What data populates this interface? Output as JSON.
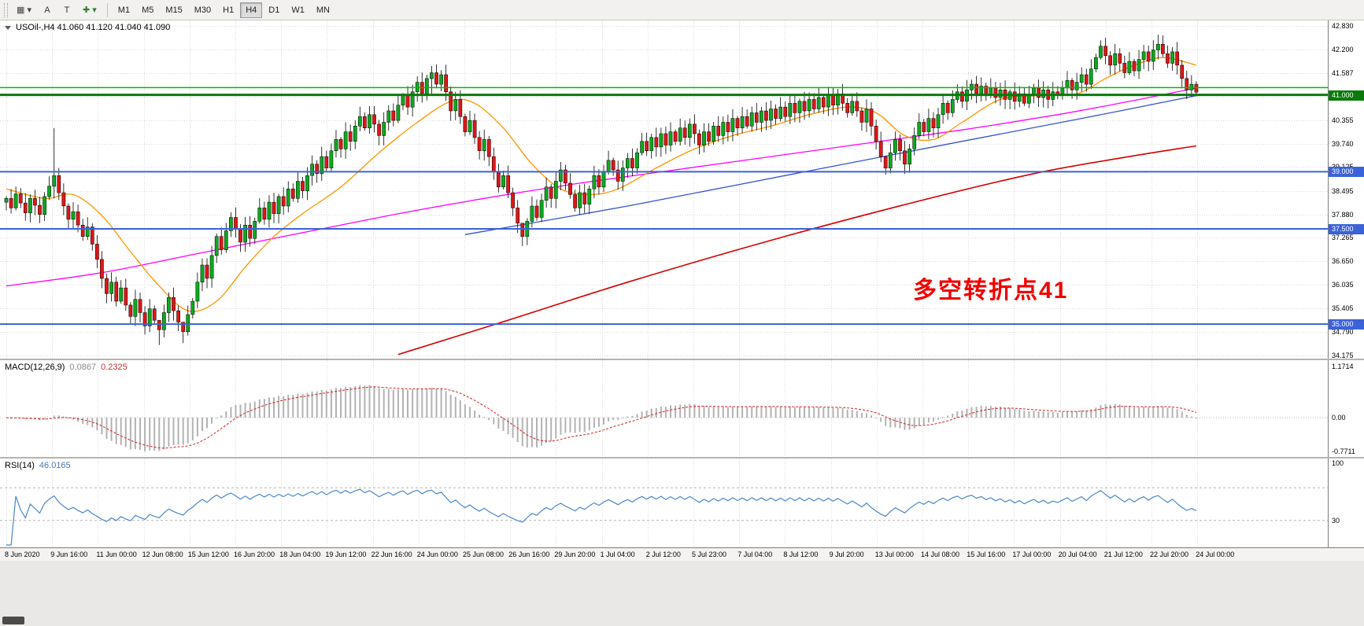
{
  "toolbar": {
    "tools": [
      {
        "name": "chart-type-dropdown",
        "glyph": "▦ ▾",
        "color": "#444444"
      },
      {
        "name": "text-tool",
        "glyph": "A",
        "color": "#333333"
      },
      {
        "name": "label-tool",
        "glyph": "T",
        "color": "#333333"
      },
      {
        "name": "crosshair-dropdown",
        "glyph": "✚ ▾",
        "color": "#2e7d32"
      }
    ],
    "timeframes": [
      "M1",
      "M5",
      "M15",
      "M30",
      "H1",
      "H4",
      "D1",
      "W1",
      "MN"
    ],
    "active_timeframe": "H4"
  },
  "chart": {
    "symbol_header": "USOil-,H4 41.060 41.120 41.040 41.090",
    "symbol": "USOil-",
    "timeframe": "H4",
    "open": "41.060",
    "high": "41.120",
    "low": "41.040",
    "close": "41.090",
    "annotation": "多空转折点41",
    "price_ticks": [
      "42.830",
      "42.200",
      "41.587",
      "40.970",
      "40.355",
      "39.740",
      "39.125",
      "38.495",
      "37.880",
      "37.265",
      "36.650",
      "36.035",
      "35.405",
      "34.790",
      "34.175"
    ],
    "price_line_labels": [
      {
        "text": "41.000",
        "price": 41.0,
        "bg": "#0a7a0a"
      },
      {
        "text": "39.000",
        "price": 39.0,
        "bg": "#3b62d9"
      },
      {
        "text": "37.500",
        "price": 37.5,
        "bg": "#3b62d9"
      },
      {
        "text": "35.000",
        "price": 35.0,
        "bg": "#3b62d9"
      }
    ]
  },
  "macd_panel": {
    "label": "MACD(12,26,9)",
    "value_main": "0.0867",
    "value_signal": "0.2325",
    "scale": [
      "1.1714",
      "0.00",
      "-0.7711"
    ]
  },
  "rsi_panel": {
    "label": "RSI(14)",
    "value": "46.0165",
    "scale": [
      "100",
      "30"
    ]
  },
  "time_axis": {
    "labels": [
      "8 Jun 2020",
      "9 Jun 16:00",
      "11 Jun 00:00",
      "12 Jun 08:00",
      "15 Jun 12:00",
      "16 Jun 20:00",
      "18 Jun 04:00",
      "19 Jun 12:00",
      "22 Jun 16:00",
      "24 Jun 00:00",
      "25 Jun 08:00",
      "26 Jun 16:00",
      "29 Jun 20:00",
      "1 Jul 04:00",
      "2 Jul 12:00",
      "5 Jul 23:00",
      "7 Jul 04:00",
      "8 Jul 12:00",
      "9 Jul 20:00",
      "13 Jul 00:00",
      "14 Jul 08:00",
      "15 Jul 16:00",
      "17 Jul 00:00",
      "20 Jul 04:00",
      "21 Jul 12:00",
      "22 Jul 20:00",
      "24 Jul 00:00"
    ]
  },
  "colors": {
    "bull": "#0caa1d",
    "bear": "#e01616",
    "candle_border": "#000000",
    "grid": "#dadada",
    "ma_fast_orange": "#ff9500",
    "ma_mid_magenta": "#ff00ff",
    "ma_slow_blue": "#3653cf",
    "ma_slowest_red": "#d40000",
    "hline_blue": "#3b62d9",
    "hline_green": "#00bb00",
    "hline_green_dark": "#0a7a0a",
    "macd_hist": "#b2b2b2",
    "macd_signal": "#d42020",
    "rsi_line": "#4a86c8",
    "annotation_red": "#f20000"
  },
  "chart_data": {
    "type": "candlestick",
    "symbol": "USOil-",
    "period": "H4",
    "price_range": {
      "max": 42.83,
      "min": 34.175
    },
    "candles": {
      "open_first": 38.2,
      "close": [
        38.3,
        38.05,
        38.42,
        38.18,
        37.92,
        38.3,
        38.12,
        37.88,
        38.35,
        38.62,
        38.9,
        38.45,
        38.1,
        37.75,
        37.95,
        37.6,
        37.3,
        37.55,
        37.1,
        36.7,
        36.2,
        35.8,
        36.1,
        35.6,
        35.95,
        35.5,
        35.2,
        35.65,
        35.3,
        34.95,
        35.4,
        35.1,
        34.85,
        35.3,
        35.7,
        35.35,
        35.05,
        34.8,
        35.25,
        35.6,
        36.1,
        36.55,
        36.2,
        36.8,
        37.3,
        36.95,
        37.45,
        37.8,
        37.5,
        37.15,
        37.6,
        37.25,
        37.7,
        38.05,
        37.75,
        38.2,
        37.9,
        38.35,
        38.1,
        38.55,
        38.3,
        38.75,
        38.5,
        38.9,
        39.2,
        38.95,
        39.4,
        39.1,
        39.55,
        39.85,
        39.6,
        40.05,
        39.8,
        40.2,
        40.45,
        40.15,
        40.5,
        40.25,
        39.95,
        40.3,
        40.6,
        40.35,
        40.75,
        41.0,
        40.7,
        41.1,
        41.35,
        41.05,
        41.45,
        41.6,
        41.3,
        41.55,
        41.1,
        40.6,
        40.9,
        40.45,
        40.05,
        40.35,
        39.9,
        39.55,
        39.85,
        39.4,
        39.0,
        38.6,
        38.9,
        38.45,
        38.05,
        37.65,
        37.3,
        37.7,
        38.1,
        37.8,
        38.25,
        38.6,
        38.3,
        38.75,
        39.05,
        38.7,
        38.4,
        38.05,
        38.45,
        38.15,
        38.55,
        38.9,
        38.6,
        39.0,
        39.3,
        39.05,
        38.75,
        39.1,
        39.35,
        39.1,
        39.5,
        39.8,
        39.55,
        39.9,
        39.65,
        40.0,
        39.7,
        40.05,
        39.8,
        40.15,
        39.9,
        40.25,
        40.0,
        39.7,
        40.05,
        39.8,
        40.2,
        39.95,
        40.3,
        40.05,
        40.4,
        40.15,
        40.45,
        40.2,
        40.55,
        40.3,
        40.6,
        40.35,
        40.65,
        40.4,
        40.7,
        40.45,
        40.8,
        40.55,
        40.85,
        40.6,
        40.9,
        40.65,
        40.95,
        40.7,
        41.0,
        40.75,
        41.05,
        40.8,
        40.55,
        40.85,
        40.6,
        40.3,
        40.65,
        40.2,
        39.8,
        39.4,
        39.1,
        39.5,
        39.85,
        39.55,
        39.2,
        39.6,
        39.95,
        40.3,
        40.05,
        40.4,
        40.15,
        40.5,
        40.8,
        40.55,
        40.9,
        41.1,
        40.85,
        41.15,
        41.3,
        41.05,
        41.25,
        41.0,
        41.2,
        40.95,
        41.15,
        40.9,
        41.1,
        40.85,
        41.05,
        40.8,
        41.0,
        41.2,
        40.95,
        41.15,
        40.9,
        41.1,
        41.0,
        41.2,
        41.4,
        41.15,
        41.35,
        41.55,
        41.3,
        41.7,
        42.0,
        42.3,
        42.05,
        41.8,
        42.1,
        41.85,
        41.6,
        41.9,
        41.65,
        41.95,
        42.15,
        41.9,
        42.2,
        42.35,
        42.1,
        41.85,
        42.15,
        41.8,
        41.45,
        41.15,
        41.3,
        41.09
      ],
      "wick_overrides": {
        "10": [
          40.15,
          38.3
        ],
        "32": [
          35.1,
          34.45
        ],
        "37": [
          35.05,
          34.5
        ],
        "89": [
          41.78,
          41.0
        ],
        "108": [
          37.55,
          37.05
        ],
        "184": [
          39.4,
          38.92
        ],
        "229": [
          42.45,
          41.95
        ],
        "241": [
          42.6,
          41.95
        ]
      }
    },
    "moving_averages": [
      {
        "name": "slowest-red",
        "color": "#d40000",
        "width": 1.6,
        "anchors": [
          [
            82,
            34.2
          ],
          [
            105,
            35.1
          ],
          [
            130,
            36.1
          ],
          [
            160,
            37.2
          ],
          [
            190,
            38.2
          ],
          [
            215,
            38.95
          ],
          [
            235,
            39.4
          ],
          [
            249,
            39.68
          ]
        ]
      },
      {
        "name": "slow-blue",
        "color": "#3653cf",
        "width": 1.3,
        "anchors": [
          [
            96,
            37.35
          ],
          [
            130,
            38.1
          ],
          [
            165,
            38.95
          ],
          [
            200,
            39.8
          ],
          [
            225,
            40.4
          ],
          [
            249,
            41.0
          ]
        ]
      },
      {
        "name": "mid-magenta",
        "color": "#ff00ff",
        "width": 1.3,
        "anchors": [
          [
            0,
            36.0
          ],
          [
            20,
            36.35
          ],
          [
            40,
            36.85
          ],
          [
            60,
            37.35
          ],
          [
            80,
            37.85
          ],
          [
            100,
            38.3
          ],
          [
            120,
            38.7
          ],
          [
            140,
            39.05
          ],
          [
            160,
            39.4
          ],
          [
            180,
            39.75
          ],
          [
            200,
            40.1
          ],
          [
            220,
            40.5
          ],
          [
            235,
            40.85
          ],
          [
            249,
            41.2
          ]
        ]
      },
      {
        "name": "fast-orange",
        "color": "#ff9500",
        "width": 1.3,
        "anchors": [
          [
            0,
            38.55
          ],
          [
            8,
            38.3
          ],
          [
            14,
            38.4
          ],
          [
            20,
            37.85
          ],
          [
            26,
            36.9
          ],
          [
            32,
            36.0
          ],
          [
            38,
            35.35
          ],
          [
            44,
            35.6
          ],
          [
            50,
            36.5
          ],
          [
            56,
            37.3
          ],
          [
            62,
            37.9
          ],
          [
            70,
            38.6
          ],
          [
            78,
            39.5
          ],
          [
            86,
            40.3
          ],
          [
            93,
            40.85
          ],
          [
            98,
            40.8
          ],
          [
            104,
            40.15
          ],
          [
            110,
            39.2
          ],
          [
            116,
            38.55
          ],
          [
            122,
            38.4
          ],
          [
            128,
            38.55
          ],
          [
            136,
            39.1
          ],
          [
            144,
            39.6
          ],
          [
            152,
            39.95
          ],
          [
            160,
            40.2
          ],
          [
            168,
            40.5
          ],
          [
            176,
            40.7
          ],
          [
            182,
            40.55
          ],
          [
            188,
            39.95
          ],
          [
            194,
            39.85
          ],
          [
            200,
            40.3
          ],
          [
            208,
            40.9
          ],
          [
            216,
            41.0
          ],
          [
            224,
            41.05
          ],
          [
            230,
            41.45
          ],
          [
            236,
            41.8
          ],
          [
            242,
            42.0
          ],
          [
            249,
            41.8
          ]
        ]
      }
    ],
    "hlines": [
      {
        "price": 41.21,
        "color": "#00bb00",
        "width": 1.5
      },
      {
        "price": 41.02,
        "color": "#0a7a0a",
        "width": 3
      },
      {
        "price": 39.0,
        "color": "#3b62d9",
        "width": 2
      },
      {
        "price": 37.5,
        "color": "#3b62d9",
        "width": 2
      },
      {
        "price": 35.0,
        "color": "#3b62d9",
        "width": 2
      }
    ],
    "macd": {
      "fast": 12,
      "slow": 26,
      "signal": 9,
      "scale_max": 1.1714,
      "scale_min": -0.7711,
      "current": 0.0867,
      "current_signal": 0.2325
    },
    "rsi": {
      "period": 14,
      "levels": [
        70,
        30
      ],
      "scale_max": 100,
      "scale_min": 0,
      "current": 46.0165
    }
  }
}
